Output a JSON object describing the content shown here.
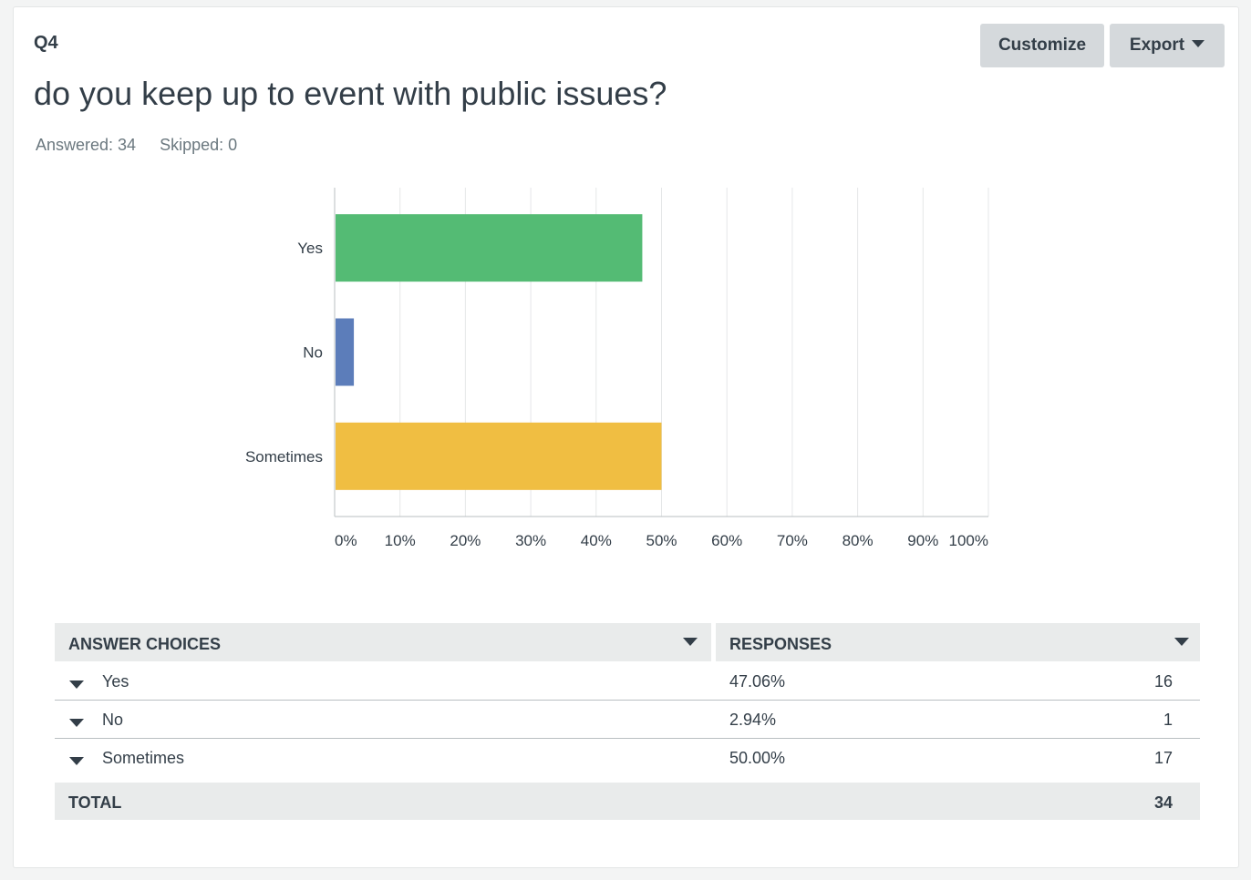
{
  "question": {
    "number": "Q4",
    "title": "do you keep up to event with public issues?",
    "answered_label": "Answered: 34",
    "skipped_label": "Skipped: 0"
  },
  "toolbar": {
    "customize_label": "Customize",
    "export_label": "Export"
  },
  "chart_data": {
    "type": "bar",
    "orientation": "horizontal",
    "categories": [
      "Yes",
      "No",
      "Sometimes"
    ],
    "values": [
      47.06,
      2.94,
      50.0
    ],
    "colors": [
      "#54bb74",
      "#5c7dba",
      "#f0be42"
    ],
    "xlim": [
      0,
      100
    ],
    "x_ticks": [
      "0%",
      "10%",
      "20%",
      "30%",
      "40%",
      "50%",
      "60%",
      "70%",
      "80%",
      "90%",
      "100%"
    ],
    "grid": true
  },
  "table": {
    "headers": {
      "choices": "ANSWER CHOICES",
      "responses": "RESPONSES"
    },
    "rows": [
      {
        "choice": "Yes",
        "percent": "47.06%",
        "count": "16"
      },
      {
        "choice": "No",
        "percent": "2.94%",
        "count": "1"
      },
      {
        "choice": "Sometimes",
        "percent": "50.00%",
        "count": "17"
      }
    ],
    "total_label": "TOTAL",
    "total_count": "34"
  }
}
